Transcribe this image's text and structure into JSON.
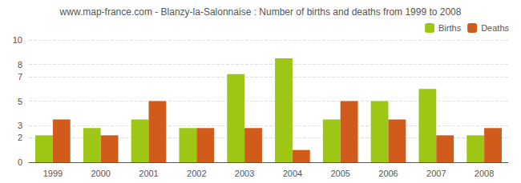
{
  "chart_data": {
    "type": "bar",
    "title": "www.map-france.com - Blanzy-la-Salonnaise : Number of births and deaths from 1999 to 2008",
    "categories": [
      "1999",
      "2000",
      "2001",
      "2002",
      "2003",
      "2004",
      "2005",
      "2006",
      "2007",
      "2008"
    ],
    "series": [
      {
        "name": "Births",
        "color": "#9dc714",
        "values": [
          2.2,
          2.8,
          3.5,
          2.8,
          7.2,
          8.5,
          3.5,
          5.0,
          6.0,
          2.2
        ]
      },
      {
        "name": "Deaths",
        "color": "#d05b1a",
        "values": [
          3.5,
          2.2,
          5.0,
          2.8,
          2.8,
          1.0,
          5.0,
          3.5,
          2.2,
          2.8
        ]
      }
    ],
    "ylim": [
      0,
      10
    ],
    "yticks": [
      0,
      2,
      3,
      5,
      7,
      8,
      10
    ],
    "grid": true,
    "legend": "upper right"
  }
}
